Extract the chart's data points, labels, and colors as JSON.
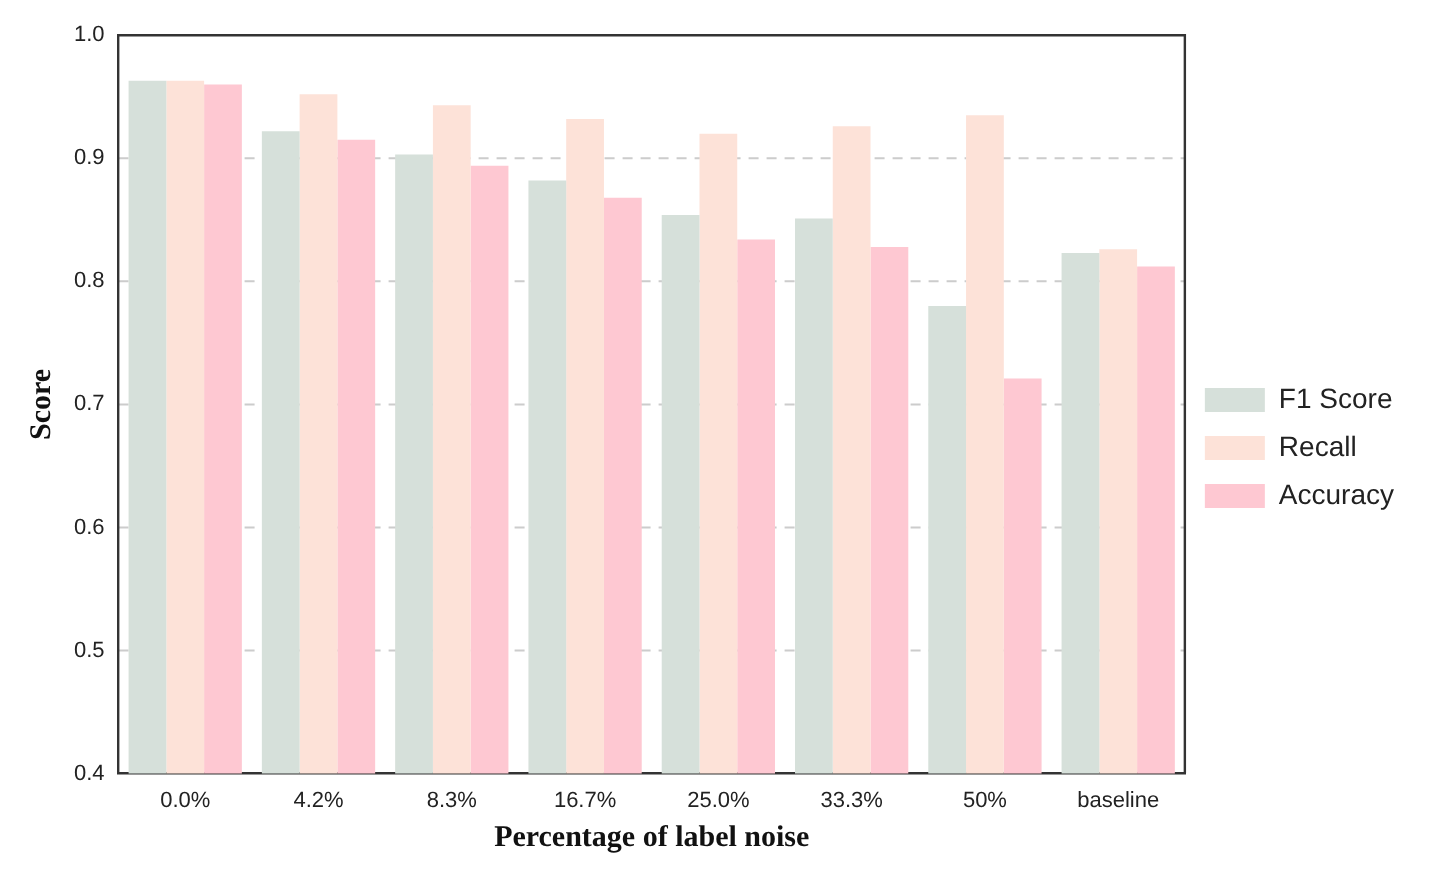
{
  "chart_data": {
    "type": "bar",
    "xlabel": "Percentage of label noise",
    "ylabel": "Score",
    "categories": [
      "0.0%",
      "4.2%",
      "8.3%",
      "16.7%",
      "25.0%",
      "33.3%",
      "50%",
      "baseline"
    ],
    "series": [
      {
        "name": "F1 Score",
        "color": "#d6e0da",
        "values": [
          0.963,
          0.922,
          0.903,
          0.882,
          0.854,
          0.851,
          0.78,
          0.823
        ]
      },
      {
        "name": "Recall",
        "color": "#fde2d8",
        "values": [
          0.963,
          0.952,
          0.943,
          0.932,
          0.92,
          0.926,
          0.935,
          0.826
        ]
      },
      {
        "name": "Accuracy",
        "color": "#fec8d2",
        "values": [
          0.96,
          0.915,
          0.894,
          0.868,
          0.834,
          0.828,
          0.721,
          0.812
        ]
      }
    ],
    "ylim": [
      0.4,
      1.0
    ],
    "yticks": [
      0.4,
      0.5,
      0.6,
      0.7,
      0.8,
      0.9,
      {
        "value": 1.0,
        "label": "1.0"
      }
    ],
    "grid": "y",
    "legend": "right"
  }
}
